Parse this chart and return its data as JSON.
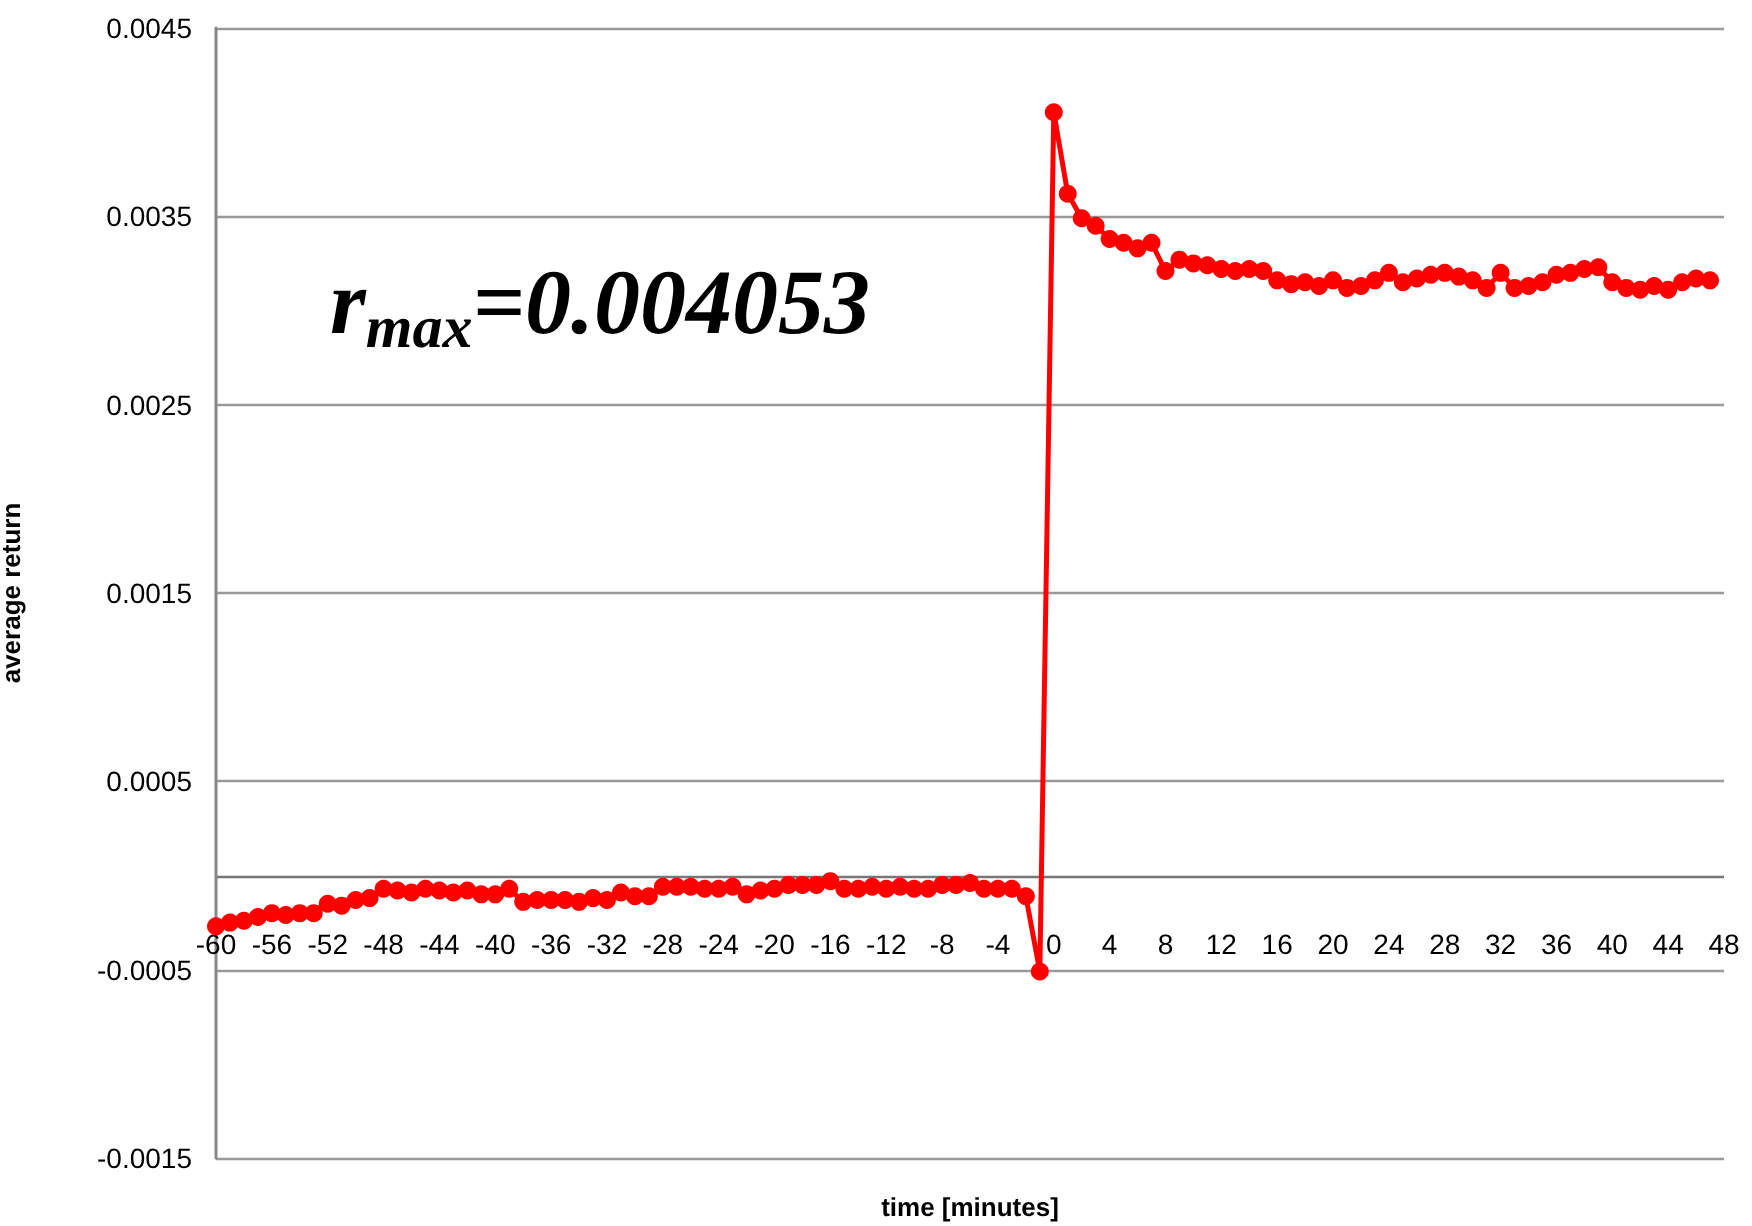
{
  "chart_data": {
    "type": "line",
    "xlabel": "time [minutes]",
    "ylabel": "average return",
    "annotations": [
      "r$_{max}$=0.004053"
    ],
    "x": [
      -60,
      -59,
      -58,
      -57,
      -56,
      -55,
      -54,
      -53,
      -52,
      -51,
      -50,
      -49,
      -48,
      -47,
      -46,
      -45,
      -44,
      -43,
      -42,
      -41,
      -40,
      -39,
      -38,
      -37,
      -36,
      -35,
      -34,
      -33,
      -32,
      -31,
      -30,
      -29,
      -28,
      -27,
      -26,
      -25,
      -24,
      -23,
      -22,
      -21,
      -20,
      -19,
      -18,
      -17,
      -16,
      -15,
      -14,
      -13,
      -12,
      -11,
      -10,
      -9,
      -8,
      -7,
      -6,
      -5,
      -4,
      -3,
      -2,
      -1,
      0,
      1,
      2,
      3,
      4,
      5,
      6,
      7,
      8,
      9,
      10,
      11,
      12,
      13,
      14,
      15,
      16,
      17,
      18,
      19,
      20,
      21,
      22,
      23,
      24,
      25,
      26,
      27,
      28,
      29,
      30,
      31,
      32,
      33,
      34,
      35,
      36,
      37,
      38,
      39,
      40,
      41,
      42,
      43,
      44,
      45,
      46,
      47
    ],
    "series": [
      {
        "color": "#ff0000",
        "values": [
          -0.00027,
          -0.00025,
          -0.00024,
          -0.00022,
          -0.0002,
          -0.00021,
          -0.0002,
          -0.0002,
          -0.00015,
          -0.00016,
          -0.00013,
          -0.00012,
          -7e-05,
          -8e-05,
          -9e-05,
          -7e-05,
          -8e-05,
          -9e-05,
          -8e-05,
          -0.0001,
          -0.0001,
          -7e-05,
          -0.00014,
          -0.00013,
          -0.00013,
          -0.00013,
          -0.00014,
          -0.00012,
          -0.00013,
          -9e-05,
          -0.00011,
          -0.00011,
          -6e-05,
          -6e-05,
          -6e-05,
          -7e-05,
          -7e-05,
          -6e-05,
          -0.0001,
          -8e-05,
          -7e-05,
          -5e-05,
          -5e-05,
          -5e-05,
          -3e-05,
          -7e-05,
          -7e-05,
          -6e-05,
          -7e-05,
          -6e-05,
          -7e-05,
          -7e-05,
          -5e-05,
          -5e-05,
          -4e-05,
          -7e-05,
          -7e-05,
          -7e-05,
          -0.00011,
          -0.00051,
          0.004053,
          0.00362,
          0.00349,
          0.00345,
          0.00338,
          0.00336,
          0.00333,
          0.00336,
          0.00321,
          0.00327,
          0.00325,
          0.00324,
          0.00322,
          0.00321,
          0.00322,
          0.00321,
          0.00316,
          0.00314,
          0.00315,
          0.00313,
          0.00316,
          0.00312,
          0.00313,
          0.00316,
          0.0032,
          0.00315,
          0.00317,
          0.00319,
          0.0032,
          0.00318,
          0.00316,
          0.00312,
          0.0032,
          0.00312,
          0.00313,
          0.00315,
          0.00319,
          0.0032,
          0.00322,
          0.00323,
          0.00315,
          0.00312,
          0.00311,
          0.00313,
          0.00311,
          0.00315,
          0.00317,
          0.00316
        ]
      }
    ],
    "xlim": [
      -60,
      48
    ],
    "xticks": [
      -60,
      -56,
      -52,
      -48,
      -44,
      -40,
      -36,
      -32,
      -28,
      -24,
      -20,
      -16,
      -12,
      -8,
      -4,
      0,
      4,
      8,
      12,
      16,
      20,
      24,
      28,
      32,
      36,
      40,
      44,
      48
    ],
    "ylim": [
      -0.0015,
      0.0045
    ],
    "yticks": [
      -0.0015,
      -0.0005,
      {
        "value": 0,
        "label": null
      },
      0.0005,
      0.0015,
      0.0025,
      0.0035,
      0.0045
    ],
    "grid": "y",
    "marker": "circle",
    "line_style": "solid"
  }
}
